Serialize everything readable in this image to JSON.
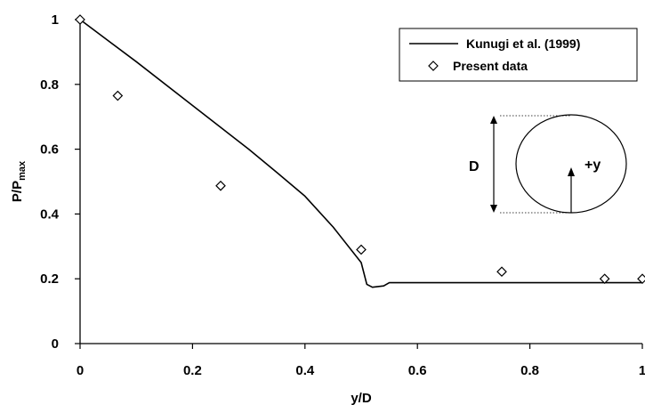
{
  "chart_data": {
    "type": "line",
    "xlabel": "y/D",
    "ylabel_main": "P/P",
    "ylabel_sub": "max",
    "xlim": [
      0,
      1
    ],
    "ylim": [
      0,
      1
    ],
    "x_ticks": [
      {
        "value": 0,
        "label": "0"
      },
      {
        "value": 0.2,
        "label": "0.2"
      },
      {
        "value": 0.4,
        "label": "0.4"
      },
      {
        "value": 0.6,
        "label": "0.6"
      },
      {
        "value": 0.8,
        "label": "0.8"
      },
      {
        "value": 1,
        "label": "1"
      }
    ],
    "y_ticks": [
      {
        "value": 0,
        "label": "0"
      },
      {
        "value": 0.2,
        "label": "0.2"
      },
      {
        "value": 0.4,
        "label": "0.4"
      },
      {
        "value": 0.6,
        "label": "0.6"
      },
      {
        "value": 0.8,
        "label": "0.8"
      },
      {
        "value": 1,
        "label": "1"
      }
    ],
    "grid": false,
    "legend_position": "top-right",
    "series": [
      {
        "name": "Kunugi et al. (1999)",
        "kind": "line",
        "color": "#000000",
        "x": [
          0,
          0.1,
          0.2,
          0.3,
          0.35,
          0.4,
          0.45,
          0.5,
          0.51,
          0.52,
          0.54,
          0.55,
          0.6,
          0.7,
          0.8,
          0.9,
          1.0
        ],
        "y": [
          1.0,
          0.87,
          0.735,
          0.6,
          0.528,
          0.455,
          0.36,
          0.25,
          0.183,
          0.174,
          0.178,
          0.188,
          0.188,
          0.188,
          0.188,
          0.188,
          0.188
        ]
      },
      {
        "name": "Present data",
        "kind": "scatter",
        "marker": "diamond-open",
        "color": "#000000",
        "x": [
          0,
          0.067,
          0.25,
          0.5,
          0.75,
          0.933,
          1.0
        ],
        "y": [
          1.0,
          0.765,
          0.487,
          0.29,
          0.222,
          0.2,
          0.2
        ]
      }
    ],
    "inset": {
      "label_D": "D",
      "label_y": "+y"
    }
  }
}
